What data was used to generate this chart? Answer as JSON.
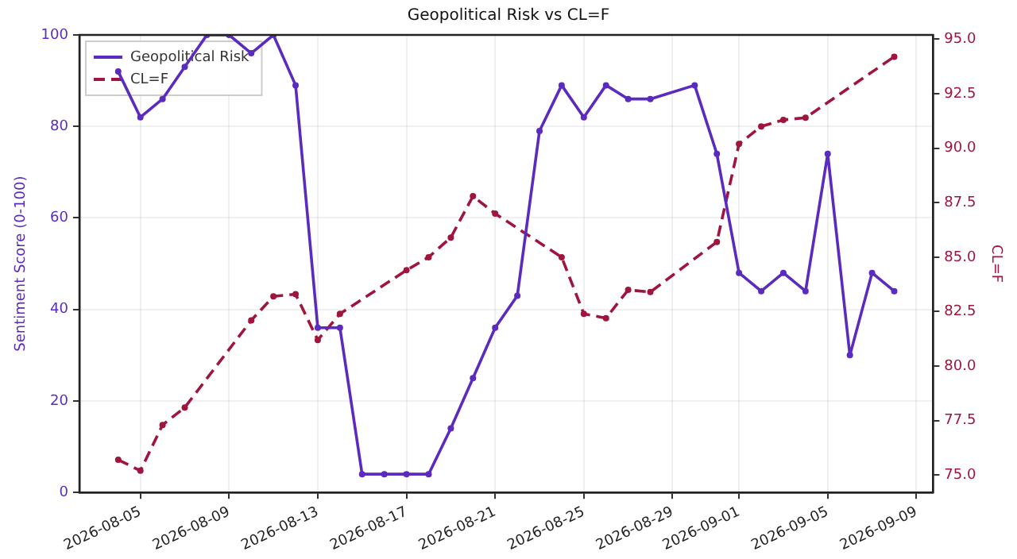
{
  "chart_data": {
    "type": "line",
    "title": "Geopolitical Risk vs CL=F",
    "ylabel": "Sentiment Score (0-100)",
    "y2label": "CL=F",
    "xlim": [
      "2026-08-02T06:00",
      "2026-09-09T18:00"
    ],
    "xticks": [
      "2026-08-05",
      "2026-08-09",
      "2026-08-13",
      "2026-08-17",
      "2026-08-21",
      "2026-08-25",
      "2026-08-29",
      "2026-09-01",
      "2026-09-05",
      "2026-09-09"
    ],
    "ylim": [
      0,
      100
    ],
    "yticks": [
      0,
      20,
      40,
      60,
      80,
      100
    ],
    "y2lim": [
      74.2,
      95.2
    ],
    "y2ticks": [
      {
        "value": 75,
        "label": "75.0"
      },
      {
        "value": 77.5,
        "label": "77.5"
      },
      {
        "value": 80,
        "label": "80.0"
      },
      {
        "value": 82.5,
        "label": "82.5"
      },
      {
        "value": 85,
        "label": "85.0"
      },
      {
        "value": 87.5,
        "label": "87.5"
      },
      {
        "value": 90,
        "label": "90.0"
      },
      {
        "value": 92.5,
        "label": "92.5"
      },
      {
        "value": 95,
        "label": "95.0"
      }
    ],
    "grid": true,
    "legend": "top left",
    "marker": "circle",
    "series": [
      {
        "name": "Geopolitical Risk",
        "color": "#5b2bbf",
        "line_style": "solid",
        "x": [
          "2026-08-04",
          "2026-08-05",
          "2026-08-06",
          "2026-08-07",
          "2026-08-08",
          "2026-08-09",
          "2026-08-10",
          "2026-08-11",
          "2026-08-12",
          "2026-08-13",
          "2026-08-14",
          "2026-08-15",
          "2026-08-16",
          "2026-08-17",
          "2026-08-18",
          "2026-08-19",
          "2026-08-20",
          "2026-08-21",
          "2026-08-22",
          "2026-08-23",
          "2026-08-24",
          "2026-08-25",
          "2026-08-26",
          "2026-08-27",
          "2026-08-28",
          "2026-08-30",
          "2026-08-31",
          "2026-09-01",
          "2026-09-02",
          "2026-09-03",
          "2026-09-04",
          "2026-09-05",
          "2026-09-06",
          "2026-09-07",
          "2026-09-08"
        ],
        "values": [
          92,
          82,
          86,
          93,
          100,
          100,
          96,
          100,
          89,
          36,
          36,
          4,
          4,
          4,
          4,
          14,
          25,
          36,
          43,
          79,
          89,
          82,
          89,
          86,
          86,
          89,
          74,
          48,
          44,
          48,
          44,
          74,
          30,
          48,
          44
        ]
      },
      {
        "name": "CL=F",
        "color": "#a0153e",
        "line_style": "dashed",
        "axis": "y2",
        "x": [
          "2026-08-04",
          "2026-08-05",
          "2026-08-06",
          "2026-08-07",
          "2026-08-10",
          "2026-08-11",
          "2026-08-12",
          "2026-08-13",
          "2026-08-14",
          "2026-08-17",
          "2026-08-18",
          "2026-08-19",
          "2026-08-20",
          "2026-08-21",
          "2026-08-24",
          "2026-08-25",
          "2026-08-26",
          "2026-08-27",
          "2026-08-28",
          "2026-08-31",
          "2026-09-01",
          "2026-09-02",
          "2026-09-03",
          "2026-09-04",
          "2026-09-08"
        ],
        "values": [
          75.7,
          75.2,
          77.3,
          78.1,
          82.1,
          83.2,
          83.3,
          81.2,
          82.4,
          84.4,
          85.0,
          85.9,
          87.8,
          87.0,
          85.0,
          82.4,
          82.2,
          83.5,
          83.4,
          85.7,
          90.2,
          91.0,
          91.3,
          91.4,
          94.2
        ]
      }
    ]
  }
}
